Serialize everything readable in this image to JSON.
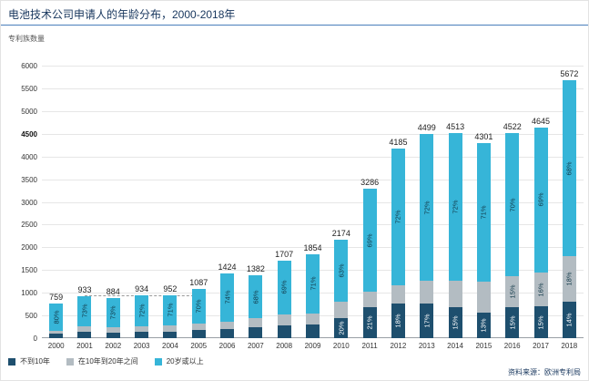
{
  "header": {
    "title": "电池技术公司申请人的年龄分布，2000-2018年"
  },
  "axes": {
    "y_label": "专利族数量",
    "y_ticks": [
      0,
      500,
      1000,
      1500,
      2000,
      2500,
      3000,
      3500,
      4000,
      4500,
      5000,
      5500,
      6000
    ],
    "y_tick_bold": 4500,
    "ylim": [
      0,
      6000
    ]
  },
  "legend": [
    {
      "label": "不到10年",
      "color": "#1e4f6e"
    },
    {
      "label": "在10年到20年之间",
      "color": "#b3bcc2"
    },
    {
      "label": "20岁或以上",
      "color": "#36b5d8"
    }
  ],
  "source": "资料来源：欧洲专利局",
  "colors": {
    "young": "#1e4f6e",
    "mid": "#b3bcc2",
    "old": "#36b5d8",
    "label_on_dark": "#ffffff",
    "label_on_light": "#123a4a",
    "grid": "#e6e6e6",
    "accent_line": "#4a7ebb"
  },
  "chart_data": {
    "type": "bar",
    "stacked": true,
    "title": "电池技术公司申请人的年龄分布，2000-2018年",
    "xlabel": "",
    "ylabel": "专利族数量",
    "ylim": [
      0,
      6000
    ],
    "grid": true,
    "legend_position": "bottom-left",
    "categories": [
      "2000",
      "2001",
      "2002",
      "2003",
      "2004",
      "2005",
      "2006",
      "2007",
      "2008",
      "2009",
      "2010",
      "2011",
      "2012",
      "2013",
      "2014",
      "2015",
      "2016",
      "2017",
      "2018"
    ],
    "totals": [
      759,
      933,
      884,
      934,
      952,
      1087,
      1424,
      1382,
      1707,
      1854,
      2174,
      3286,
      4185,
      4499,
      4513,
      4301,
      4522,
      4645,
      5672
    ],
    "series": [
      {
        "name": "不到10年",
        "pct": [
          12,
          14,
          14,
          15,
          15,
          17,
          14,
          17,
          17,
          16,
          20,
          21,
          18,
          17,
          15,
          13,
          15,
          15,
          14
        ],
        "labels": [
          "",
          "",
          "",
          "",
          "",
          "",
          "",
          "",
          "",
          "",
          "20%",
          "21%",
          "18%",
          "17%",
          "15%",
          "13%",
          "15%",
          "15%",
          "14%"
        ]
      },
      {
        "name": "在10年到20年之间",
        "pct": [
          8,
          13,
          13,
          13,
          14,
          13,
          12,
          15,
          14,
          13,
          17,
          10,
          10,
          11,
          13,
          16,
          15,
          16,
          18
        ],
        "labels": [
          "",
          "",
          "",
          "",
          "",
          "",
          "",
          "",
          "",
          "",
          "",
          "",
          "",
          "",
          "",
          "",
          "15%",
          "16%",
          "18%"
        ]
      },
      {
        "name": "20岁或以上",
        "pct": [
          80,
          73,
          73,
          72,
          71,
          70,
          74,
          68,
          69,
          71,
          63,
          69,
          72,
          72,
          72,
          71,
          70,
          69,
          68
        ],
        "labels": [
          "80%",
          "73%",
          "73%",
          "72%",
          "71%",
          "70%",
          "74%",
          "68%",
          "69%",
          "71%",
          "63%",
          "69%",
          "72%",
          "72%",
          "72%",
          "71%",
          "70%",
          "69%",
          "68%"
        ]
      }
    ],
    "annotation_dash_line": {
      "value": 940,
      "from_index": 1,
      "to_index": 5
    }
  }
}
